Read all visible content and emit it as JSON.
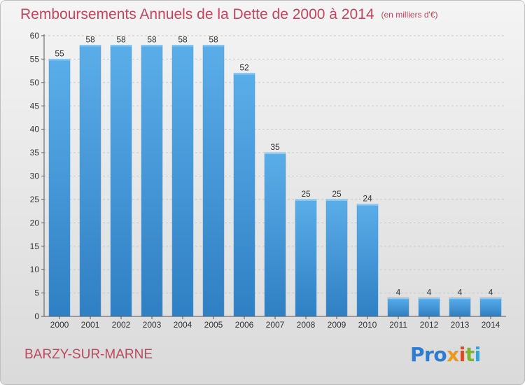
{
  "header": {
    "title": "Remboursements Annuels de la Dette de 2000 à 2014",
    "subtitle": "(en milliers d'€)"
  },
  "footer": {
    "town": "BARZY-SUR-MARNE",
    "logo": [
      "Pro",
      "x",
      "i",
      "t",
      "i"
    ]
  },
  "colors": {
    "bar_top": "#5aaee8",
    "bar_bottom": "#2f7fc4",
    "title": "#c0475d"
  },
  "chart_data": {
    "type": "bar",
    "title": "Remboursements Annuels de la Dette de 2000 à 2014",
    "subtitle": "(en milliers d'€)",
    "xlabel": "",
    "ylabel": "",
    "categories": [
      "2000",
      "2001",
      "2002",
      "2003",
      "2004",
      "2005",
      "2006",
      "2007",
      "2008",
      "2009",
      "2010",
      "2011",
      "2012",
      "2013",
      "2014"
    ],
    "values": [
      55,
      58,
      58,
      58,
      58,
      58,
      52,
      35,
      25,
      25,
      24,
      4,
      4,
      4,
      4
    ],
    "ylim": [
      0,
      60
    ],
    "yticks": [
      0,
      5,
      10,
      15,
      20,
      25,
      30,
      35,
      40,
      45,
      50,
      55,
      60
    ],
    "grid": "horizontal dashed"
  }
}
